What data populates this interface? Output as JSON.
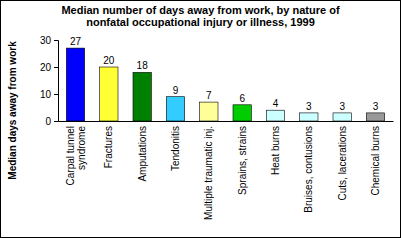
{
  "chart_data": {
    "type": "bar",
    "title": "Median number of days away from work, by nature of nonfatal occupational injury or illness, 1999",
    "y_label": "Median days away from work",
    "categories": [
      "Carpal tunnel syndrome",
      "Fractures",
      "Amputations",
      "Tendonitis",
      "Multiple traumatic inj.",
      "Sprains, strains",
      "Heat burns",
      "Bruises, contusions",
      "Cuts, lacerations",
      "Chemical burns"
    ],
    "values": [
      27,
      20,
      18,
      9,
      7,
      6,
      4,
      3,
      3,
      3
    ],
    "colors": [
      "#0000ff",
      "#ffff33",
      "#008000",
      "#33ccff",
      "#ffff99",
      "#00cc00",
      "#ccffff",
      "#ccffff",
      "#ccffff",
      "#999999"
    ],
    "ylim": [
      0,
      30
    ],
    "yticks": [
      0,
      10,
      20,
      30
    ],
    "grid": false,
    "data_labels": true
  }
}
